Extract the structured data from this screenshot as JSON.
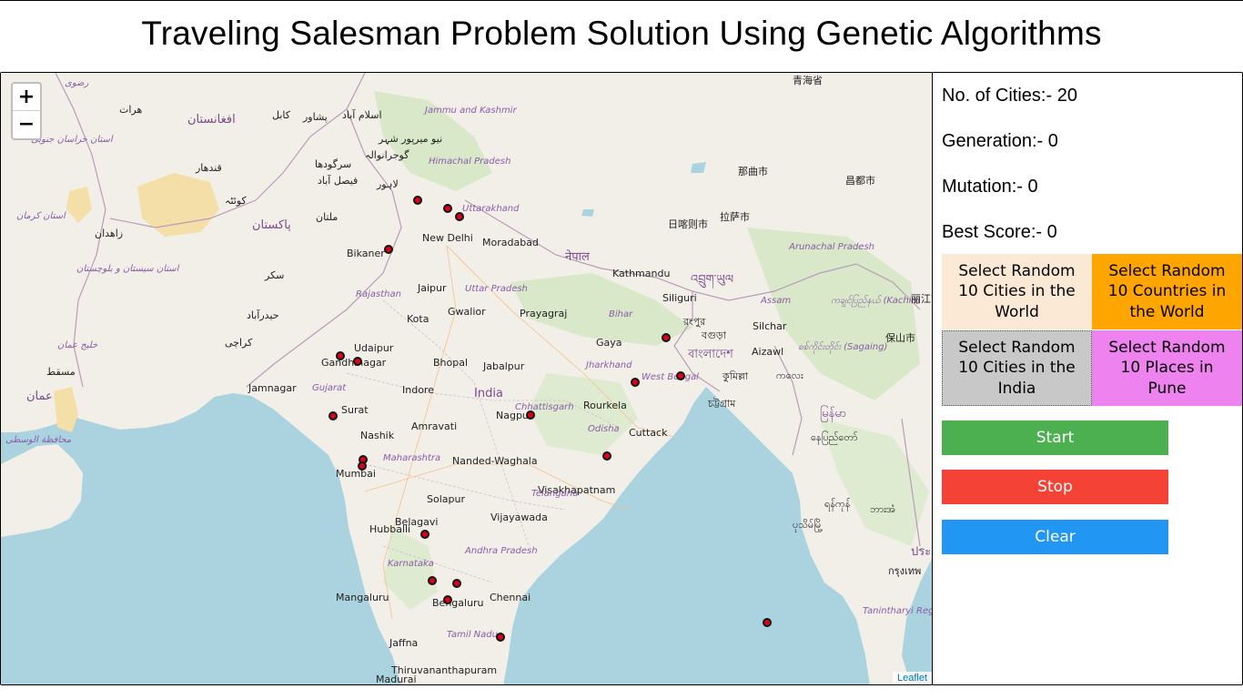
{
  "page": {
    "title": "Traveling Salesman Problem Solution Using Genetic Algorithms"
  },
  "map": {
    "zoom_in_label": "+",
    "zoom_out_label": "−",
    "attribution": "Leaflet",
    "colors": {
      "water": "#aad3df",
      "land": "#f2efe9",
      "forest": "#cde3c0",
      "desert": "#f5dfa8",
      "marker": "#e0001a"
    },
    "labels": [
      {
        "text": "هرات",
        "kind": "city"
      },
      {
        "text": "افغانستان",
        "kind": "country"
      },
      {
        "text": "کابل",
        "kind": "city"
      },
      {
        "text": "پشاور",
        "kind": "city"
      },
      {
        "text": "اسلام آباد",
        "kind": "city"
      },
      {
        "text": "Jammu and Kashmir",
        "kind": "state"
      },
      {
        "text": "青海省",
        "kind": "city"
      },
      {
        "text": "استان خراسان جنوبی",
        "kind": "state"
      },
      {
        "text": "نیو میرپور شہر",
        "kind": "city"
      },
      {
        "text": "گوجرانوالہ",
        "kind": "city"
      },
      {
        "text": "Himachal Pradesh",
        "kind": "state"
      },
      {
        "text": "قندهار",
        "kind": "city"
      },
      {
        "text": "سرگودھا",
        "kind": "city"
      },
      {
        "text": "لاہور",
        "kind": "city"
      },
      {
        "text": "فیصل آباد",
        "kind": "city"
      },
      {
        "text": "那曲市",
        "kind": "city"
      },
      {
        "text": "昌都市",
        "kind": "city"
      },
      {
        "text": "کوئٹہ",
        "kind": "city"
      },
      {
        "text": "Uttarakhand",
        "kind": "state"
      },
      {
        "text": "ملتان",
        "kind": "city"
      },
      {
        "text": "استان کرمان",
        "kind": "state"
      },
      {
        "text": "پاکستان",
        "kind": "country"
      },
      {
        "text": "日喀则市",
        "kind": "city"
      },
      {
        "text": "拉萨市",
        "kind": "city"
      },
      {
        "text": "زاهدان",
        "kind": "city"
      },
      {
        "text": "New Delhi",
        "kind": "city"
      },
      {
        "text": "Moradabad",
        "kind": "city"
      },
      {
        "text": "नेपाल",
        "kind": "country"
      },
      {
        "text": "Arunachal Pradesh",
        "kind": "state"
      },
      {
        "text": "Bikaner",
        "kind": "city"
      },
      {
        "text": "سکر",
        "kind": "city"
      },
      {
        "text": "Kathmandu",
        "kind": "city"
      },
      {
        "text": "འབྲུག་ཡུལ",
        "kind": "country"
      },
      {
        "text": "استان سیستان و بلوچستان",
        "kind": "state"
      },
      {
        "text": "Jaipur",
        "kind": "city"
      },
      {
        "text": "Rajasthan",
        "kind": "state"
      },
      {
        "text": "Uttar Pradesh",
        "kind": "state"
      },
      {
        "text": "Siliguri",
        "kind": "city"
      },
      {
        "text": "Assam",
        "kind": "state"
      },
      {
        "text": "ကချင်ပြည်နယ် (Kachin)",
        "kind": "state"
      },
      {
        "text": "丽江市",
        "kind": "city"
      },
      {
        "text": "حیدرآباد",
        "kind": "city"
      },
      {
        "text": "Gwalior",
        "kind": "city"
      },
      {
        "text": "Prayagraj",
        "kind": "city"
      },
      {
        "text": "Bihar",
        "kind": "state"
      },
      {
        "text": "রংপুর",
        "kind": "city"
      },
      {
        "text": "Silchar",
        "kind": "city"
      },
      {
        "text": "Kota",
        "kind": "city"
      },
      {
        "text": "বগুড়া",
        "kind": "city"
      },
      {
        "text": "保山市",
        "kind": "city"
      },
      {
        "text": "کراچی",
        "kind": "city"
      },
      {
        "text": "خليج عمان",
        "kind": "state"
      },
      {
        "text": "Udaipur",
        "kind": "city"
      },
      {
        "text": "Gaya",
        "kind": "city"
      },
      {
        "text": "বাংলাদেশ",
        "kind": "country"
      },
      {
        "text": "Aizawl",
        "kind": "city"
      },
      {
        "text": "စစ်ကိုင်းတိုင်း (Sagaing)",
        "kind": "state"
      },
      {
        "text": "مسقط",
        "kind": "city"
      },
      {
        "text": "Gandhinagar",
        "kind": "city"
      },
      {
        "text": "Bhopal",
        "kind": "city"
      },
      {
        "text": "Jabalpur",
        "kind": "city"
      },
      {
        "text": "Jharkhand",
        "kind": "state"
      },
      {
        "text": "কুমিল্লা",
        "kind": "city"
      },
      {
        "text": "ကလေး",
        "kind": "city"
      },
      {
        "text": "عمان",
        "kind": "country"
      },
      {
        "text": "Jamnagar",
        "kind": "city"
      },
      {
        "text": "Gujarat",
        "kind": "state"
      },
      {
        "text": "Indore",
        "kind": "city"
      },
      {
        "text": "India",
        "kind": "country"
      },
      {
        "text": "West Bengal",
        "kind": "state"
      },
      {
        "text": "চট্টগ্রাম",
        "kind": "city"
      },
      {
        "text": "Rourkela",
        "kind": "city"
      },
      {
        "text": "Surat",
        "kind": "city"
      },
      {
        "text": "Chhattisgarh",
        "kind": "state"
      },
      {
        "text": "Nagpur",
        "kind": "city"
      },
      {
        "text": "မြန်မာ",
        "kind": "country"
      },
      {
        "text": "Amravati",
        "kind": "city"
      },
      {
        "text": "محافظة الوسطى",
        "kind": "state"
      },
      {
        "text": "Nashik",
        "kind": "city"
      },
      {
        "text": "Odisha",
        "kind": "state"
      },
      {
        "text": "Cuttack",
        "kind": "city"
      },
      {
        "text": "နေပြည်တော်",
        "kind": "city"
      },
      {
        "text": "Maharashtra",
        "kind": "state"
      },
      {
        "text": "Nanded-Waghala",
        "kind": "city"
      },
      {
        "text": "Mumbai",
        "kind": "city"
      },
      {
        "text": "Visakhapatnam",
        "kind": "city"
      },
      {
        "text": "Telangana",
        "kind": "state"
      },
      {
        "text": "Solapur",
        "kind": "city"
      },
      {
        "text": "ရန်ကုန်",
        "kind": "city"
      },
      {
        "text": "ဘားအံ",
        "kind": "city"
      },
      {
        "text": "Vijayawada",
        "kind": "city"
      },
      {
        "text": "Belagavi",
        "kind": "city"
      },
      {
        "text": "ပုသိမ်မြို့",
        "kind": "city"
      },
      {
        "text": "Hubballi",
        "kind": "city"
      },
      {
        "text": "ประเ",
        "kind": "country"
      },
      {
        "text": "Andhra Pradesh",
        "kind": "state"
      },
      {
        "text": "Karnataka",
        "kind": "state"
      },
      {
        "text": "กรุงเทพ",
        "kind": "city"
      },
      {
        "text": "Mangaluru",
        "kind": "city"
      },
      {
        "text": "Chennai",
        "kind": "city"
      },
      {
        "text": "Bengaluru",
        "kind": "city"
      },
      {
        "text": "Tanintharyi Region",
        "kind": "state"
      },
      {
        "text": "Tamil Nadu",
        "kind": "state"
      },
      {
        "text": "Jaffna",
        "kind": "city"
      },
      {
        "text": "Madurai",
        "kind": "city"
      },
      {
        "text": "Thiruvananthapuram",
        "kind": "city"
      },
      {
        "text": "رضوی",
        "kind": "state"
      }
    ]
  },
  "stats": {
    "cities": "No. of Cities:- 20",
    "generation": "Generation:- 0",
    "mutation": "Mutation:- 0",
    "best_score": "Best Score:- 0"
  },
  "selectors": {
    "world_cities": "Select Random 10 Cities in the World",
    "world_countries": "Select Random 10 Countries in the World",
    "india_cities": "Select Random 10 Cities in the India",
    "pune_places": "Select Random 10 Places in Pune"
  },
  "actions": {
    "start": "Start",
    "stop": "Stop",
    "clear": "Clear"
  },
  "button_colors": {
    "world_cities": "#fbe9d6",
    "world_countries": "#ffa500",
    "india_cities": "#c8c8c8",
    "pune_places": "#ee82ee",
    "start": "#4caf50",
    "stop": "#f44336",
    "clear": "#2196f3"
  }
}
